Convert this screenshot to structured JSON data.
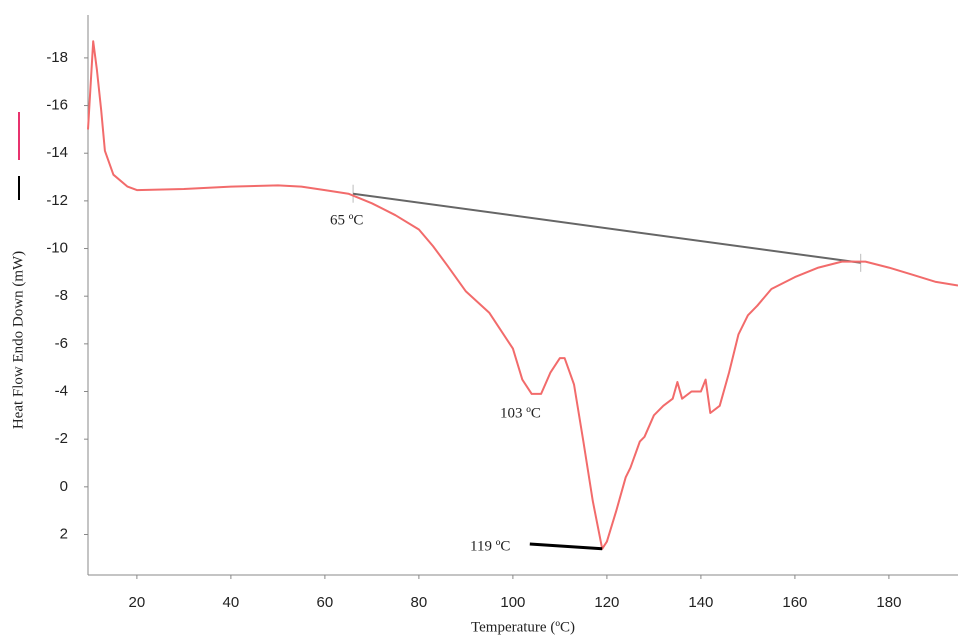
{
  "chart_data": {
    "type": "line",
    "x_label": "Temperature (ºC)",
    "y_label": "Heat Flow Endo Down (mW)",
    "xlim": [
      9.6,
      194.7
    ],
    "xticks": [
      20,
      40,
      60,
      80,
      100,
      120,
      140,
      160,
      180
    ],
    "ylim": [
      3.7,
      -19.8
    ],
    "yticks": [
      -18,
      -16,
      -14,
      -12,
      -10,
      -8,
      -6,
      -4,
      -2,
      0,
      2
    ],
    "series": [
      {
        "color": "#f26b6b",
        "x": [
          9.6,
          10.7,
          11.5,
          12.4,
          13.2,
          15,
          18,
          20,
          30,
          40,
          50,
          55,
          60,
          65,
          70,
          75,
          80,
          83,
          86,
          90,
          95,
          100,
          102,
          104,
          106,
          108,
          110,
          111,
          113,
          115,
          117,
          119,
          120,
          122,
          124,
          125,
          127,
          128,
          130,
          132,
          134,
          135,
          136,
          138,
          140,
          141,
          142,
          144,
          146,
          148,
          150,
          152,
          155,
          160,
          165,
          170,
          175,
          180,
          185,
          190,
          194.7
        ],
        "values": [
          -15,
          -18.7,
          -17.5,
          -15.8,
          -14.1,
          -13.1,
          -12.6,
          -12.45,
          -12.5,
          -12.6,
          -12.65,
          -12.6,
          -12.45,
          -12.3,
          -11.9,
          -11.4,
          -10.8,
          -10.1,
          -9.3,
          -8.2,
          -7.3,
          -5.8,
          -4.5,
          -3.9,
          -3.9,
          -4.8,
          -5.4,
          -5.4,
          -4.3,
          -1.9,
          0.6,
          2.6,
          2.3,
          1.0,
          -0.4,
          -0.8,
          -1.9,
          -2.1,
          -3.0,
          -3.4,
          -3.7,
          -4.4,
          -3.7,
          -4.0,
          -4.0,
          -4.5,
          -3.1,
          -3.4,
          -4.8,
          -6.4,
          -7.2,
          -7.6,
          -8.3,
          -8.8,
          -9.2,
          -9.45,
          -9.45,
          -9.2,
          -8.9,
          -8.6,
          -8.45
        ]
      }
    ],
    "baseline": {
      "color": "#666666",
      "x": [
        66,
        174
      ],
      "values": [
        -12.3,
        -9.4
      ]
    },
    "pointer": {
      "color": "#000000",
      "x": [
        103.6,
        119
      ],
      "values": [
        2.4,
        2.6
      ]
    },
    "annotations": [
      "65 ºC",
      "103 ºC",
      "119 ºC"
    ]
  }
}
